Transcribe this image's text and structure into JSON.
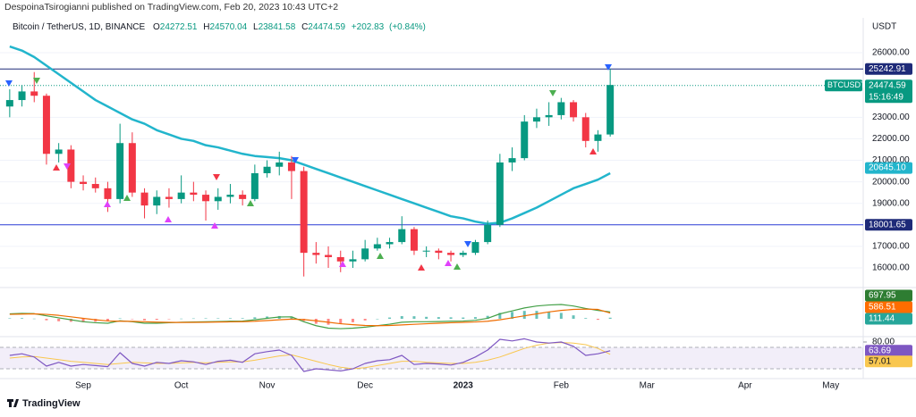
{
  "header": {
    "publisher": "DespoinaTsirogianni published on TradingView.com, Feb 20, 2023 10:43 UTC+2"
  },
  "footer": {
    "brand": "TradingView"
  },
  "chart_data": [
    {
      "type": "candlestick",
      "title": "Bitcoin / TetherUS, 1D, BINANCE",
      "ohlc": [
        {
          "label": "O",
          "value": 24272.51
        },
        {
          "label": "H",
          "value": 24570.04
        },
        {
          "label": "L",
          "value": 23841.58
        },
        {
          "label": "C",
          "value": 24474.59
        }
      ],
      "change": {
        "value": 202.83,
        "label": "+202.83"
      },
      "change_pct": {
        "value": 0.84,
        "label": "(+0.84%)"
      },
      "unit": "USDT",
      "grid": true,
      "ylim": [
        15170,
        27620
      ],
      "yticks": [
        {
          "value": 16000,
          "label": "16000.00"
        },
        {
          "value": 17000,
          "label": "17000.00"
        },
        {
          "value": 19000,
          "label": "19000.00"
        },
        {
          "value": 20000,
          "label": "20000.00"
        },
        {
          "value": 21000,
          "label": "21000.00"
        },
        {
          "value": 22000,
          "label": "22000.00"
        },
        {
          "value": 23000,
          "label": "23000.00"
        },
        {
          "value": 26000,
          "label": "26000.00"
        }
      ],
      "categories": [
        null,
        null,
        null,
        null,
        null,
        null,
        "Sep",
        null,
        null,
        null,
        null,
        null,
        null,
        null,
        "Oct",
        null,
        null,
        null,
        null,
        null,
        null,
        "Nov",
        null,
        null,
        null,
        null,
        null,
        null,
        null,
        "Dec",
        null,
        null,
        null,
        null,
        null,
        null,
        null,
        "2023",
        null,
        null,
        null,
        null,
        null,
        null,
        null,
        "Feb",
        null,
        null,
        null,
        null
      ],
      "future_categories": [
        null,
        null,
        "Mar",
        null,
        null,
        null,
        null,
        null,
        null,
        null,
        "Apr",
        null,
        null,
        null,
        null,
        null,
        null,
        "May",
        null,
        null
      ],
      "up_color": "#089981",
      "down_color": "#f23645",
      "open": [
        23500,
        23800,
        24200,
        24000,
        21300,
        21500,
        20000,
        19900,
        19700,
        19200,
        21800,
        19500,
        18900,
        19300,
        19200,
        19500,
        19400,
        19100,
        19300,
        19400,
        19200,
        20400,
        20700,
        20900,
        20500,
        16700,
        16600,
        16500,
        16300,
        16400,
        16900,
        17100,
        17200,
        17800,
        16800,
        16800,
        16700,
        16600,
        16700,
        17200,
        18000,
        20900,
        21100,
        22800,
        23000,
        23100,
        23700,
        23000,
        21900,
        22200
      ],
      "high": [
        24300,
        24500,
        25100,
        24100,
        21800,
        21700,
        20300,
        20200,
        20000,
        22700,
        22300,
        19700,
        19600,
        19700,
        20300,
        20000,
        19600,
        19700,
        19900,
        19600,
        20800,
        21000,
        21400,
        21200,
        20700,
        17200,
        17000,
        16800,
        16800,
        17300,
        17400,
        17400,
        18400,
        17900,
        17000,
        16900,
        16800,
        16800,
        17300,
        18200,
        21300,
        21600,
        23100,
        23400,
        23700,
        23900,
        23800,
        23200,
        22400,
        25250
      ],
      "low": [
        23000,
        23500,
        23700,
        20800,
        20900,
        19700,
        19600,
        19500,
        18600,
        19000,
        19300,
        18300,
        18500,
        18800,
        19000,
        19100,
        18200,
        18700,
        19000,
        18900,
        19100,
        20200,
        20300,
        19200,
        15600,
        16200,
        16000,
        15800,
        16000,
        16300,
        16800,
        16900,
        17100,
        16600,
        16500,
        16400,
        16300,
        16500,
        16600,
        17100,
        17900,
        20500,
        21000,
        22500,
        22600,
        22900,
        22800,
        21600,
        21400,
        22100
      ],
      "close": [
        23800,
        24200,
        24000,
        21300,
        21500,
        20000,
        19900,
        19700,
        19200,
        21800,
        19500,
        18900,
        19300,
        19200,
        19500,
        19400,
        19100,
        19300,
        19400,
        19200,
        20400,
        20700,
        20900,
        20500,
        16700,
        16600,
        16500,
        16300,
        16400,
        16900,
        17100,
        17200,
        17800,
        16800,
        16800,
        16700,
        16600,
        16700,
        17200,
        18000,
        20900,
        21100,
        22800,
        23000,
        23100,
        23700,
        23000,
        21900,
        22200,
        24500
      ],
      "ma": {
        "color": "#22b5cc",
        "label": {
          "value": 20645.1,
          "label": "20645.10"
        },
        "values": [
          26290,
          26100,
          25800,
          25400,
          25000,
          24600,
          24200,
          23800,
          23500,
          23200,
          22900,
          22700,
          22400,
          22200,
          22000,
          21900,
          21700,
          21600,
          21450,
          21300,
          21200,
          21150,
          21100,
          21000,
          20800,
          20600,
          20400,
          20200,
          20000,
          19800,
          19600,
          19400,
          19200,
          19000,
          18800,
          18600,
          18400,
          18300,
          18150,
          18050,
          18100,
          18300,
          18550,
          18800,
          19100,
          19400,
          19700,
          19900,
          20100,
          20400
        ]
      },
      "price_lines": [
        {
          "value": 25242.91,
          "color": "#1e2a78"
        },
        {
          "value": 18001.65,
          "color": "#2a3bd6"
        }
      ],
      "last_price": {
        "symbol": "BTCUSDT",
        "value": 24474.59,
        "countdown": "15:16:49",
        "color": "#089981"
      }
    },
    {
      "type": "macd",
      "ylim": [
        -1900,
        2900
      ],
      "series": [
        {
          "name": "MACD",
          "color": "#43a047",
          "values": [
            500,
            550,
            520,
            300,
            100,
            -100,
            -300,
            -400,
            -450,
            -200,
            -300,
            -450,
            -450,
            -400,
            -350,
            -320,
            -300,
            -280,
            -250,
            -230,
            -100,
            50,
            180,
            200,
            -300,
            -700,
            -950,
            -1000,
            -950,
            -850,
            -700,
            -550,
            -350,
            -300,
            -300,
            -280,
            -250,
            -230,
            -150,
            50,
            500,
            800,
            1100,
            1300,
            1400,
            1450,
            1300,
            1050,
            850,
            697.95
          ]
        },
        {
          "name": "Signal",
          "color": "#ef6c00",
          "values": [
            450,
            480,
            500,
            450,
            350,
            200,
            50,
            -100,
            -220,
            -250,
            -260,
            -300,
            -340,
            -360,
            -370,
            -360,
            -350,
            -330,
            -310,
            -290,
            -250,
            -180,
            -100,
            -30,
            -80,
            -200,
            -350,
            -500,
            -600,
            -680,
            -700,
            -680,
            -620,
            -560,
            -500,
            -450,
            -400,
            -360,
            -320,
            -250,
            -100,
            100,
            300,
            500,
            700,
            850,
            950,
            980,
            950,
            586.51
          ]
        },
        {
          "name": "Histogram",
          "color": "#26a69a",
          "down_color": "#ff5252",
          "values": [
            50,
            70,
            20,
            -150,
            -250,
            -300,
            -350,
            -300,
            -230,
            50,
            -40,
            -150,
            -110,
            -40,
            20,
            40,
            50,
            50,
            60,
            60,
            150,
            230,
            280,
            230,
            -220,
            -500,
            -600,
            -500,
            -350,
            -170,
            0,
            130,
            270,
            260,
            200,
            170,
            150,
            130,
            170,
            300,
            600,
            700,
            800,
            800,
            700,
            600,
            350,
            70,
            -100,
            111.44
          ]
        }
      ]
    },
    {
      "type": "rsi",
      "ylim": [
        10,
        90
      ],
      "yticks": [
        {
          "value": 80,
          "label": "80.00"
        }
      ],
      "bands": [
        30,
        70
      ],
      "series": [
        {
          "name": "RSI",
          "color": "#7e57c2",
          "values": [
            55,
            58,
            52,
            35,
            42,
            35,
            38,
            36,
            34,
            60,
            40,
            35,
            42,
            40,
            45,
            43,
            38,
            44,
            46,
            42,
            58,
            62,
            65,
            55,
            25,
            30,
            28,
            26,
            30,
            40,
            45,
            47,
            55,
            38,
            40,
            39,
            37,
            42,
            52,
            65,
            85,
            82,
            86,
            80,
            78,
            80,
            72,
            55,
            58,
            63.69
          ]
        },
        {
          "name": "RSI MA",
          "color": "#f9c74f",
          "values": [
            50,
            52,
            53,
            50,
            47,
            44,
            42,
            40,
            38,
            40,
            42,
            41,
            40,
            40,
            41,
            42,
            41,
            42,
            43,
            43,
            46,
            50,
            54,
            56,
            50,
            44,
            38,
            33,
            30,
            32,
            36,
            40,
            44,
            44,
            42,
            41,
            40,
            40,
            42,
            46,
            52,
            60,
            68,
            74,
            78,
            79,
            78,
            75,
            68,
            57.01
          ]
        }
      ]
    }
  ]
}
